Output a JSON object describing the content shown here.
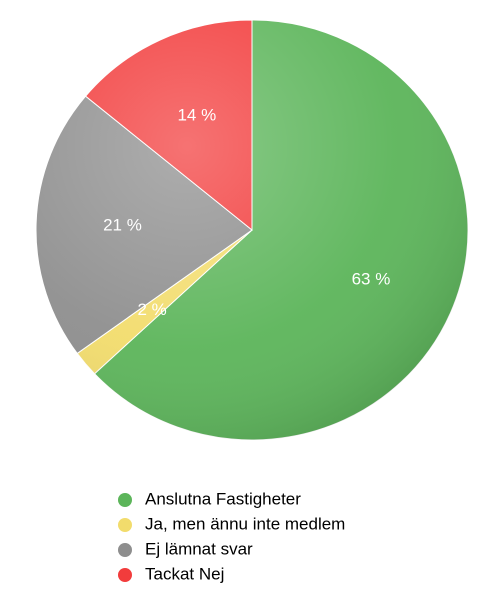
{
  "chart_data": {
    "type": "pie",
    "categories": [
      "Anslutna Fastigheter",
      "Ja, men ännu inte medlem",
      "Ej lämnat svar",
      "Tackat Nej"
    ],
    "values": [
      63,
      2,
      21,
      14
    ],
    "value_labels": [
      "63 %",
      "2 %",
      "21 %",
      "14 %"
    ],
    "colors": [
      "#5cb55a",
      "#f2dc6c",
      "#8e8e8e",
      "#f23c3c"
    ]
  }
}
